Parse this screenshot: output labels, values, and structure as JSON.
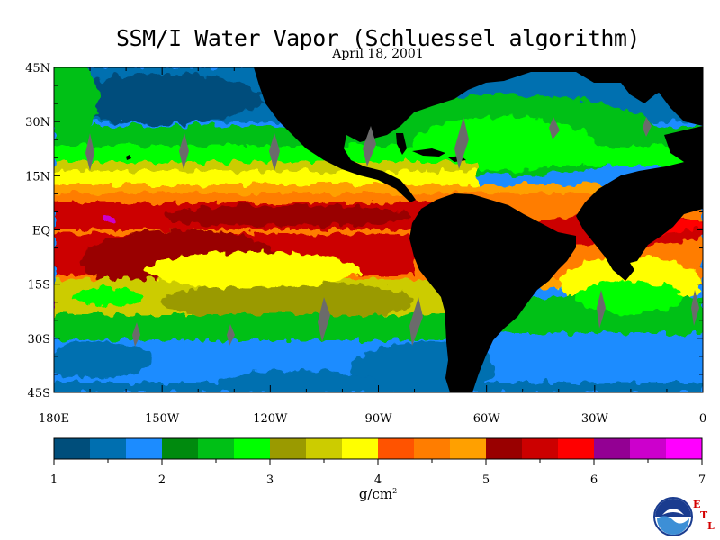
{
  "header": {
    "title": "SSM/I Water Vapor (Schluessel algorithm)",
    "date": "April 18, 2001"
  },
  "map": {
    "lat_labels": [
      "45N",
      "30N",
      "15N",
      "EQ",
      "15S",
      "30S",
      "45S"
    ],
    "lon_labels": [
      "180E",
      "150W",
      "120W",
      "90W",
      "60W",
      "30W",
      "0"
    ],
    "lat_range": [
      -45,
      45
    ],
    "lon_range": [
      -180,
      0
    ]
  },
  "colorbar": {
    "colors": [
      "#004e7b",
      "#006fb0",
      "#1c8cff",
      "#008a0e",
      "#00c016",
      "#00ff00",
      "#9a9a00",
      "#cccc00",
      "#ffff00",
      "#ff5300",
      "#ff7d00",
      "#ffa000",
      "#990000",
      "#cc0000",
      "#ff0000",
      "#930093",
      "#cc00cc",
      "#ff00ff"
    ],
    "tick_labels": [
      "1",
      "2",
      "3",
      "4",
      "5",
      "6",
      "7"
    ],
    "range": [
      1,
      7
    ],
    "unit": "g/cm",
    "unit_superscript": "2"
  },
  "logo": {
    "noaa_text": "NOAA",
    "etl_letters": [
      "E",
      "T",
      "L"
    ]
  }
}
